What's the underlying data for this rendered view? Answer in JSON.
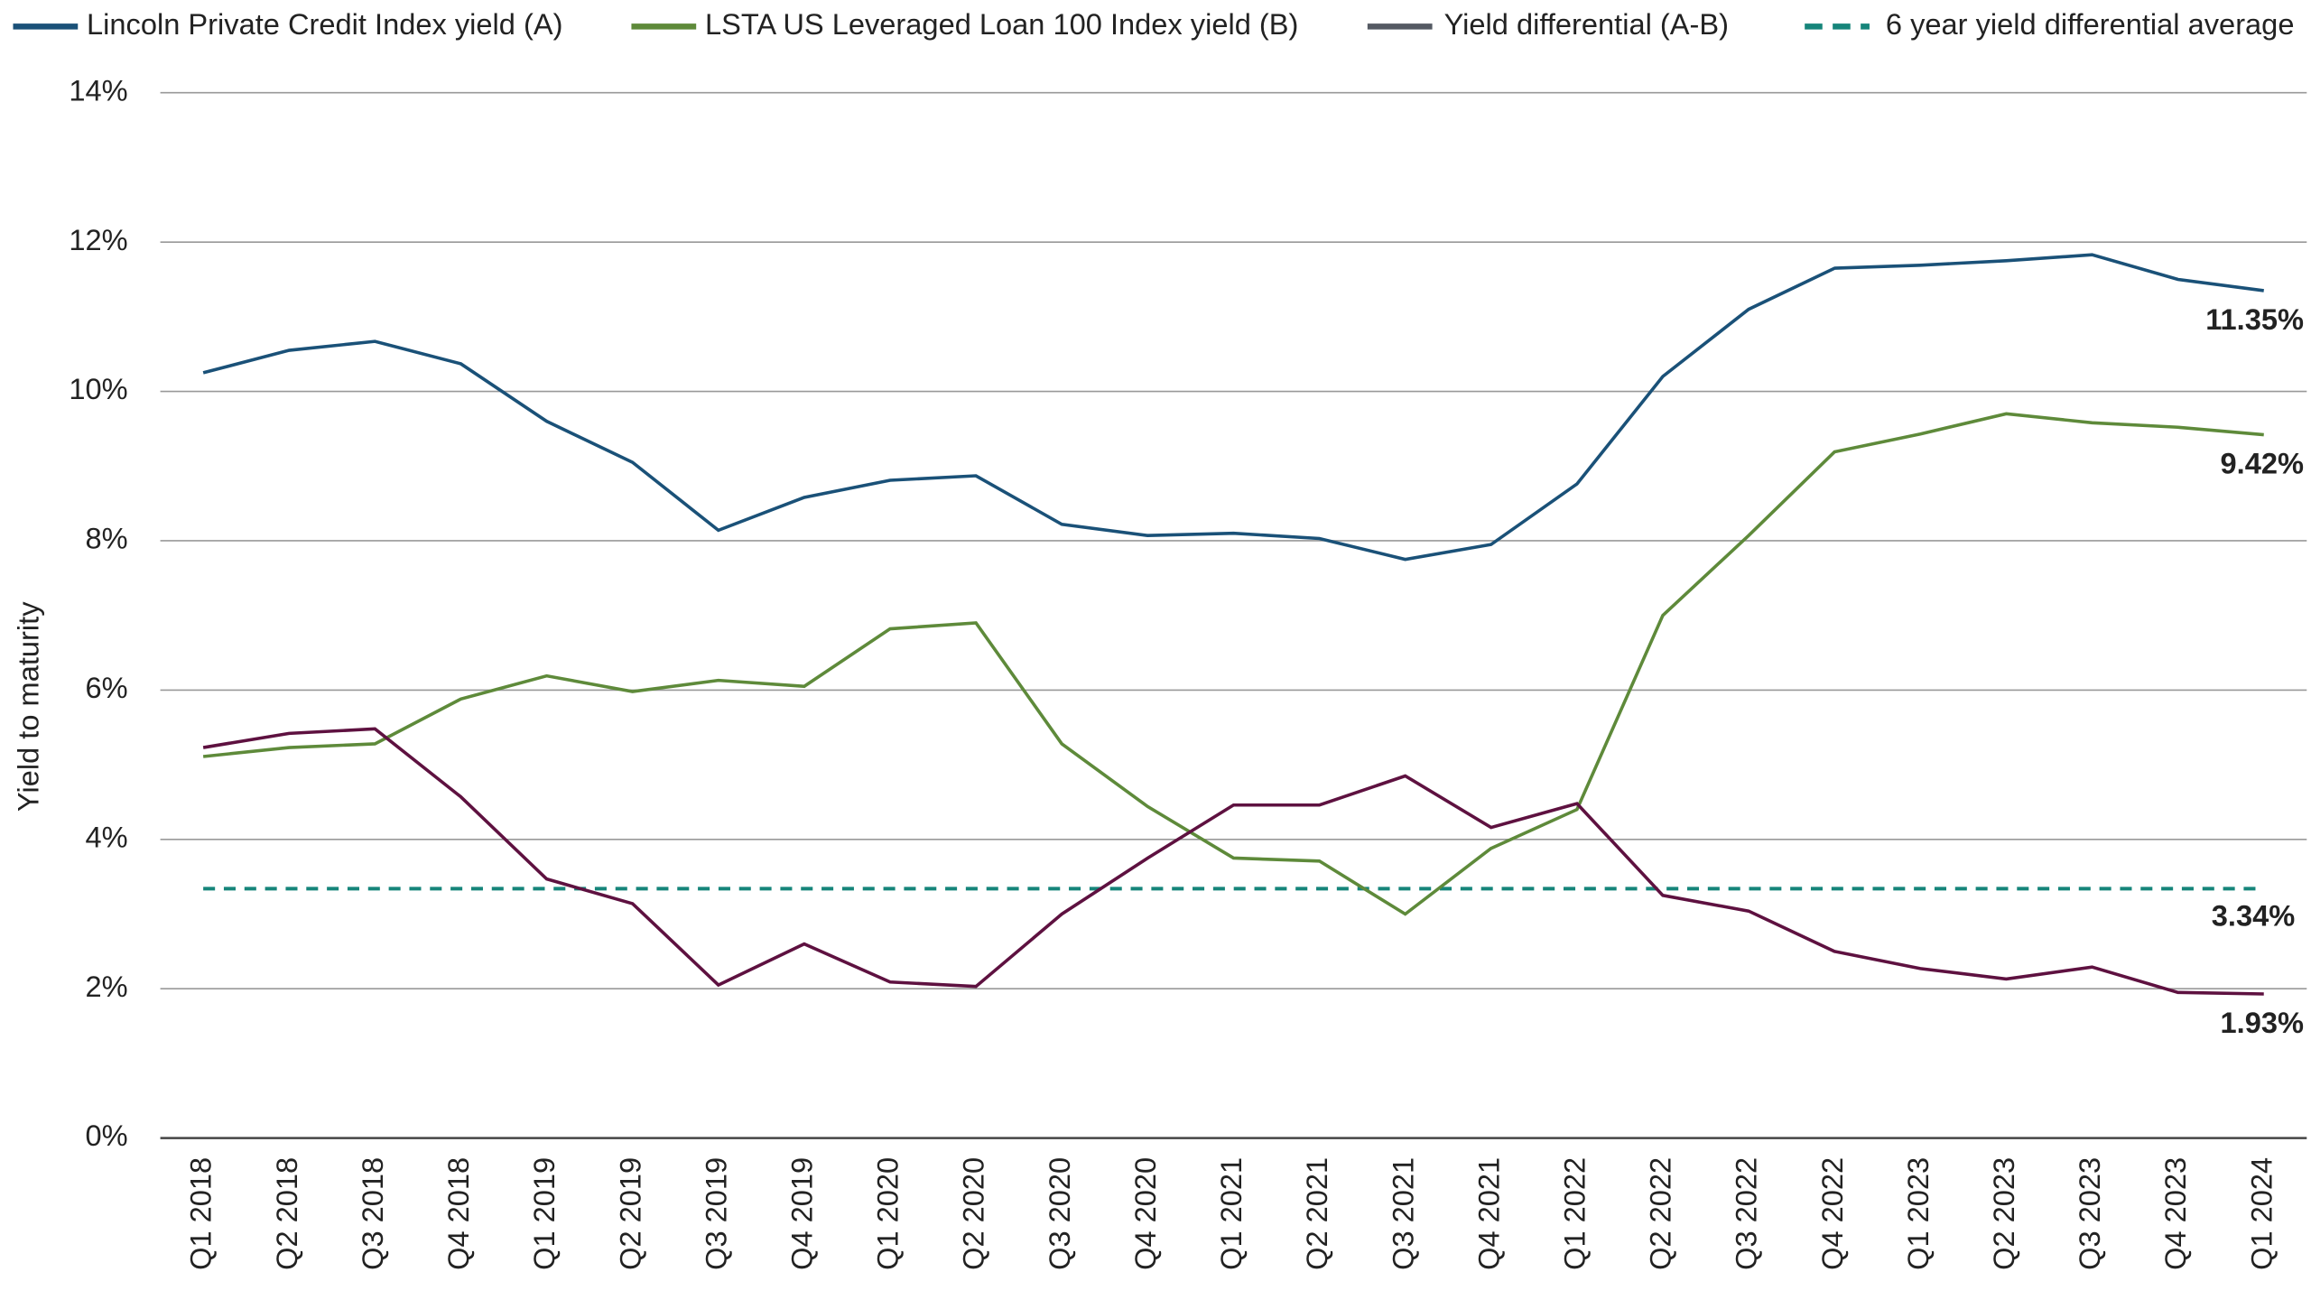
{
  "chart_data": {
    "type": "line",
    "y_label": "Yield to maturity",
    "categories": [
      "Q1 2018",
      "Q2 2018",
      "Q3 2018",
      "Q4 2018",
      "Q1 2019",
      "Q2 2019",
      "Q3 2019",
      "Q4 2019",
      "Q1 2020",
      "Q2 2020",
      "Q3 2020",
      "Q4 2020",
      "Q1 2021",
      "Q2 2021",
      "Q3 2021",
      "Q4 2021",
      "Q1 2022",
      "Q2 2022",
      "Q3 2022",
      "Q4 2022",
      "Q1 2023",
      "Q2 2023",
      "Q3 2023",
      "Q4 2023",
      "Q1 2024"
    ],
    "series": [
      {
        "name": "Lincoln Private Credit Index yield (A)",
        "color": "#1a5178",
        "values": [
          10.25,
          10.55,
          10.67,
          10.37,
          9.6,
          9.05,
          8.14,
          8.58,
          8.81,
          8.87,
          8.22,
          8.07,
          8.1,
          8.03,
          7.75,
          7.95,
          8.76,
          10.2,
          11.1,
          11.65,
          11.69,
          11.75,
          11.83,
          11.5,
          11.35
        ],
        "value_labels": [
          null,
          null,
          null,
          null,
          null,
          null,
          null,
          null,
          null,
          null,
          null,
          null,
          null,
          null,
          null,
          null,
          null,
          null,
          null,
          null,
          null,
          null,
          null,
          null,
          "11.35%"
        ]
      },
      {
        "name": "LSTA US Leveraged Loan 100 Index yield (B)",
        "color": "#5e8a3a",
        "values": [
          5.11,
          5.23,
          5.28,
          5.88,
          6.19,
          5.98,
          6.13,
          6.05,
          6.82,
          6.9,
          5.28,
          4.44,
          3.75,
          3.71,
          3.0,
          3.88,
          4.4,
          7.0,
          8.07,
          9.19,
          9.43,
          9.7,
          9.58,
          9.52,
          9.42
        ],
        "value_labels": [
          null,
          null,
          null,
          null,
          null,
          null,
          null,
          null,
          null,
          null,
          null,
          null,
          null,
          null,
          null,
          null,
          null,
          null,
          null,
          null,
          null,
          null,
          null,
          null,
          "9.42%"
        ]
      },
      {
        "name": "Yield differential (A-B)",
        "color": "#5e1140",
        "legend_color": "#555a63",
        "values": [
          5.23,
          5.42,
          5.48,
          4.57,
          3.47,
          3.14,
          2.05,
          2.6,
          2.09,
          2.03,
          3.0,
          3.75,
          4.46,
          4.46,
          4.85,
          4.16,
          4.48,
          3.25,
          3.04,
          2.5,
          2.27,
          2.13,
          2.29,
          1.95,
          1.93
        ],
        "value_labels": [
          null,
          null,
          null,
          null,
          null,
          null,
          null,
          null,
          null,
          null,
          null,
          null,
          null,
          null,
          null,
          null,
          null,
          null,
          null,
          null,
          null,
          null,
          null,
          null,
          "1.93%"
        ]
      }
    ],
    "average": {
      "name": "6 year yield differential average",
      "color": "#16857a",
      "value": 3.34,
      "value_label": "3.34%",
      "dashed": true
    },
    "ylim": [
      0,
      14
    ],
    "yticks": [
      {
        "value": 0,
        "label": "0%"
      },
      {
        "value": 2,
        "label": "2%"
      },
      {
        "value": 4,
        "label": "4%"
      },
      {
        "value": 6,
        "label": "6%"
      },
      {
        "value": 8,
        "label": "8%"
      },
      {
        "value": 10,
        "label": "10%"
      },
      {
        "value": 12,
        "label": "12%"
      },
      {
        "value": 14,
        "label": "14%"
      }
    ],
    "grid": true
  }
}
